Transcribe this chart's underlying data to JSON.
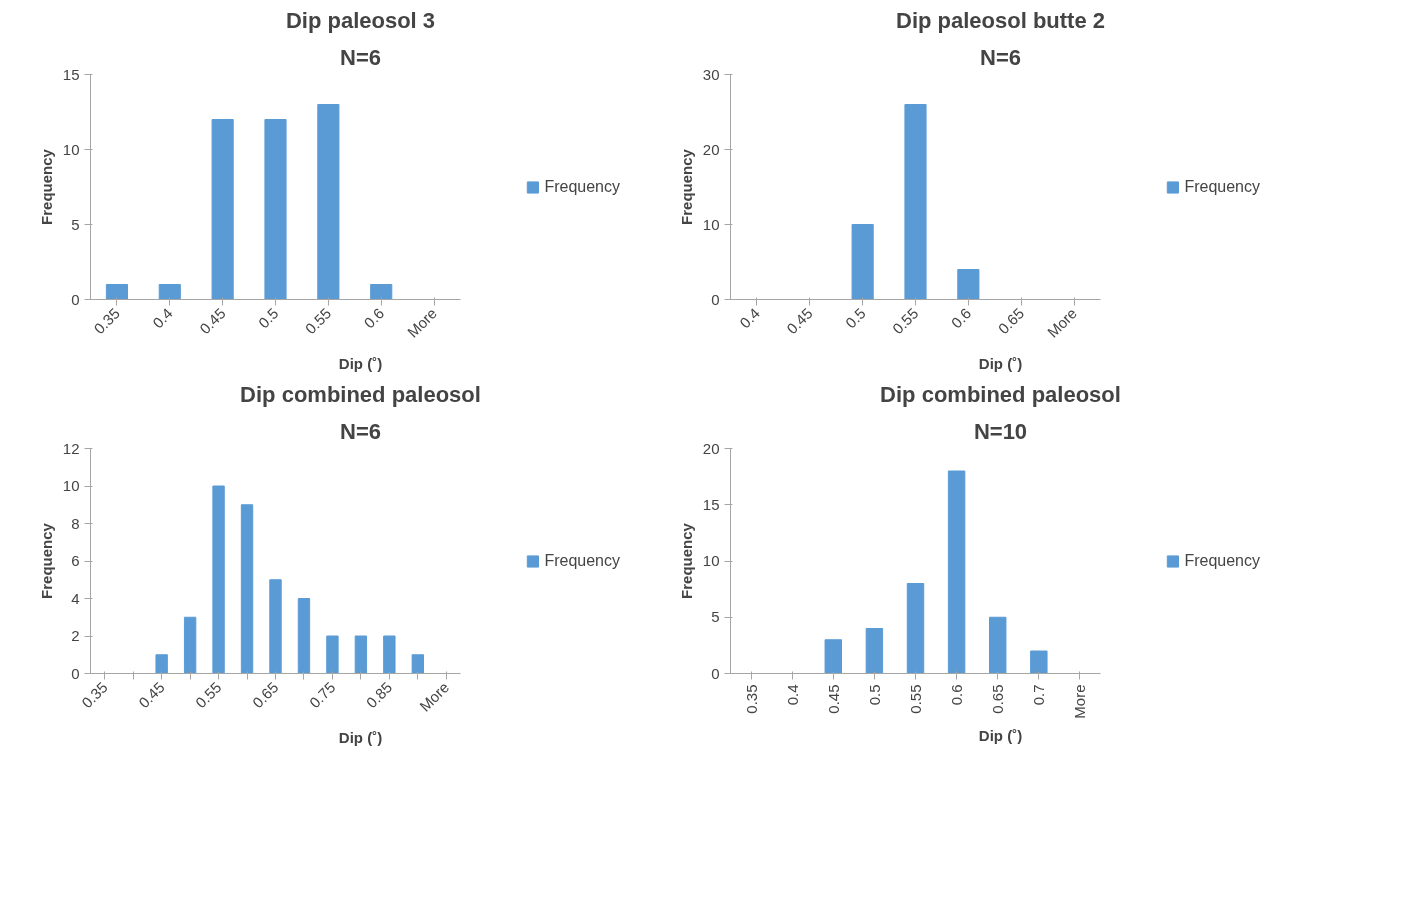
{
  "chart_data": [
    {
      "type": "bar",
      "title": "Dip paleosol 3",
      "subtitle": "N=6",
      "xlabel": "Dip (˚)",
      "ylabel": "Frequency",
      "categories": [
        "0.35",
        "0.4",
        "0.45",
        "0.5",
        "0.55",
        "0.6",
        "More"
      ],
      "series": [
        {
          "name": "Frequency",
          "color": "#5b9bd5",
          "values": [
            1,
            1,
            12,
            12,
            13,
            1,
            0
          ]
        }
      ],
      "ylim": [
        0,
        15
      ],
      "yticks": [
        0,
        5,
        10,
        15
      ],
      "grid": false,
      "legend": "right"
    },
    {
      "type": "bar",
      "title": "Dip paleosol butte 2",
      "subtitle": "N=6",
      "xlabel": "Dip (˚)",
      "ylabel": "Frequency",
      "categories": [
        "0.4",
        "0.45",
        "0.5",
        "0.55",
        "0.6",
        "0.65",
        "More"
      ],
      "series": [
        {
          "name": "Frequency",
          "color": "#5b9bd5",
          "values": [
            0,
            0,
            10,
            26,
            4,
            0,
            0
          ]
        }
      ],
      "ylim": [
        0,
        30
      ],
      "yticks": [
        0,
        10,
        20,
        30
      ],
      "grid": false,
      "legend": "right"
    },
    {
      "type": "bar",
      "title": "Dip combined paleosol",
      "subtitle": "N=6",
      "xlabel": "Dip (˚)",
      "ylabel": "Frequency",
      "categories": [
        "0.35",
        null,
        "0.45",
        null,
        "0.55",
        null,
        "0.65",
        null,
        "0.75",
        null,
        "0.85",
        null,
        "More"
      ],
      "series": [
        {
          "name": "Frequency",
          "color": "#5b9bd5",
          "values": [
            0,
            0,
            1,
            3,
            10,
            9,
            5,
            4,
            2,
            2,
            2,
            1,
            0
          ]
        }
      ],
      "ylim": [
        0,
        12
      ],
      "yticks": [
        0,
        2,
        4,
        6,
        8,
        10,
        12
      ],
      "grid": false,
      "legend": "right"
    },
    {
      "type": "bar",
      "title": "Dip combined paleosol",
      "subtitle": "N=10",
      "xlabel": "Dip (˚)",
      "ylabel": "Frequency",
      "categories": [
        "0.35",
        "0.4",
        "0.45",
        "0.5",
        "0.55",
        "0.6",
        "0.65",
        "0.7",
        "More"
      ],
      "series": [
        {
          "name": "Frequency",
          "color": "#5b9bd5",
          "values": [
            0,
            0,
            3,
            4,
            8,
            18,
            5,
            2,
            0
          ]
        }
      ],
      "ylim": [
        0,
        20
      ],
      "yticks": [
        0,
        5,
        10,
        15,
        20
      ],
      "grid": false,
      "legend": "right"
    }
  ]
}
